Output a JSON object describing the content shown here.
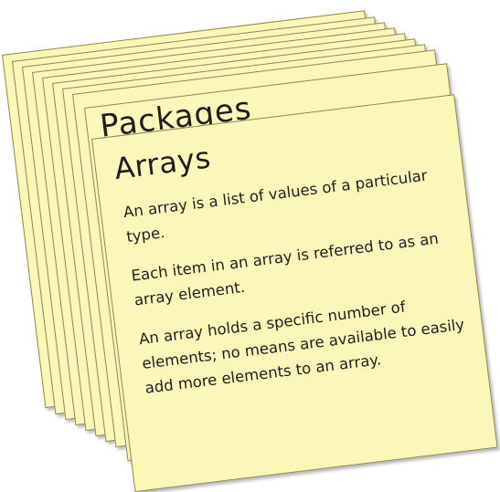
{
  "stack": {
    "peek_title": "Packages"
  },
  "card": {
    "title": "Arrays",
    "paragraphs": [
      "An array is a list of values of a particular type.",
      "Each item in an array is referred to as an array element.",
      "An array holds a specific number of elements; no means are available to easily add more elements to an array."
    ]
  },
  "colors": {
    "note_fill": "#fbf7b8",
    "note_border": "#8f8a55",
    "ink": "#1e1e1e"
  }
}
